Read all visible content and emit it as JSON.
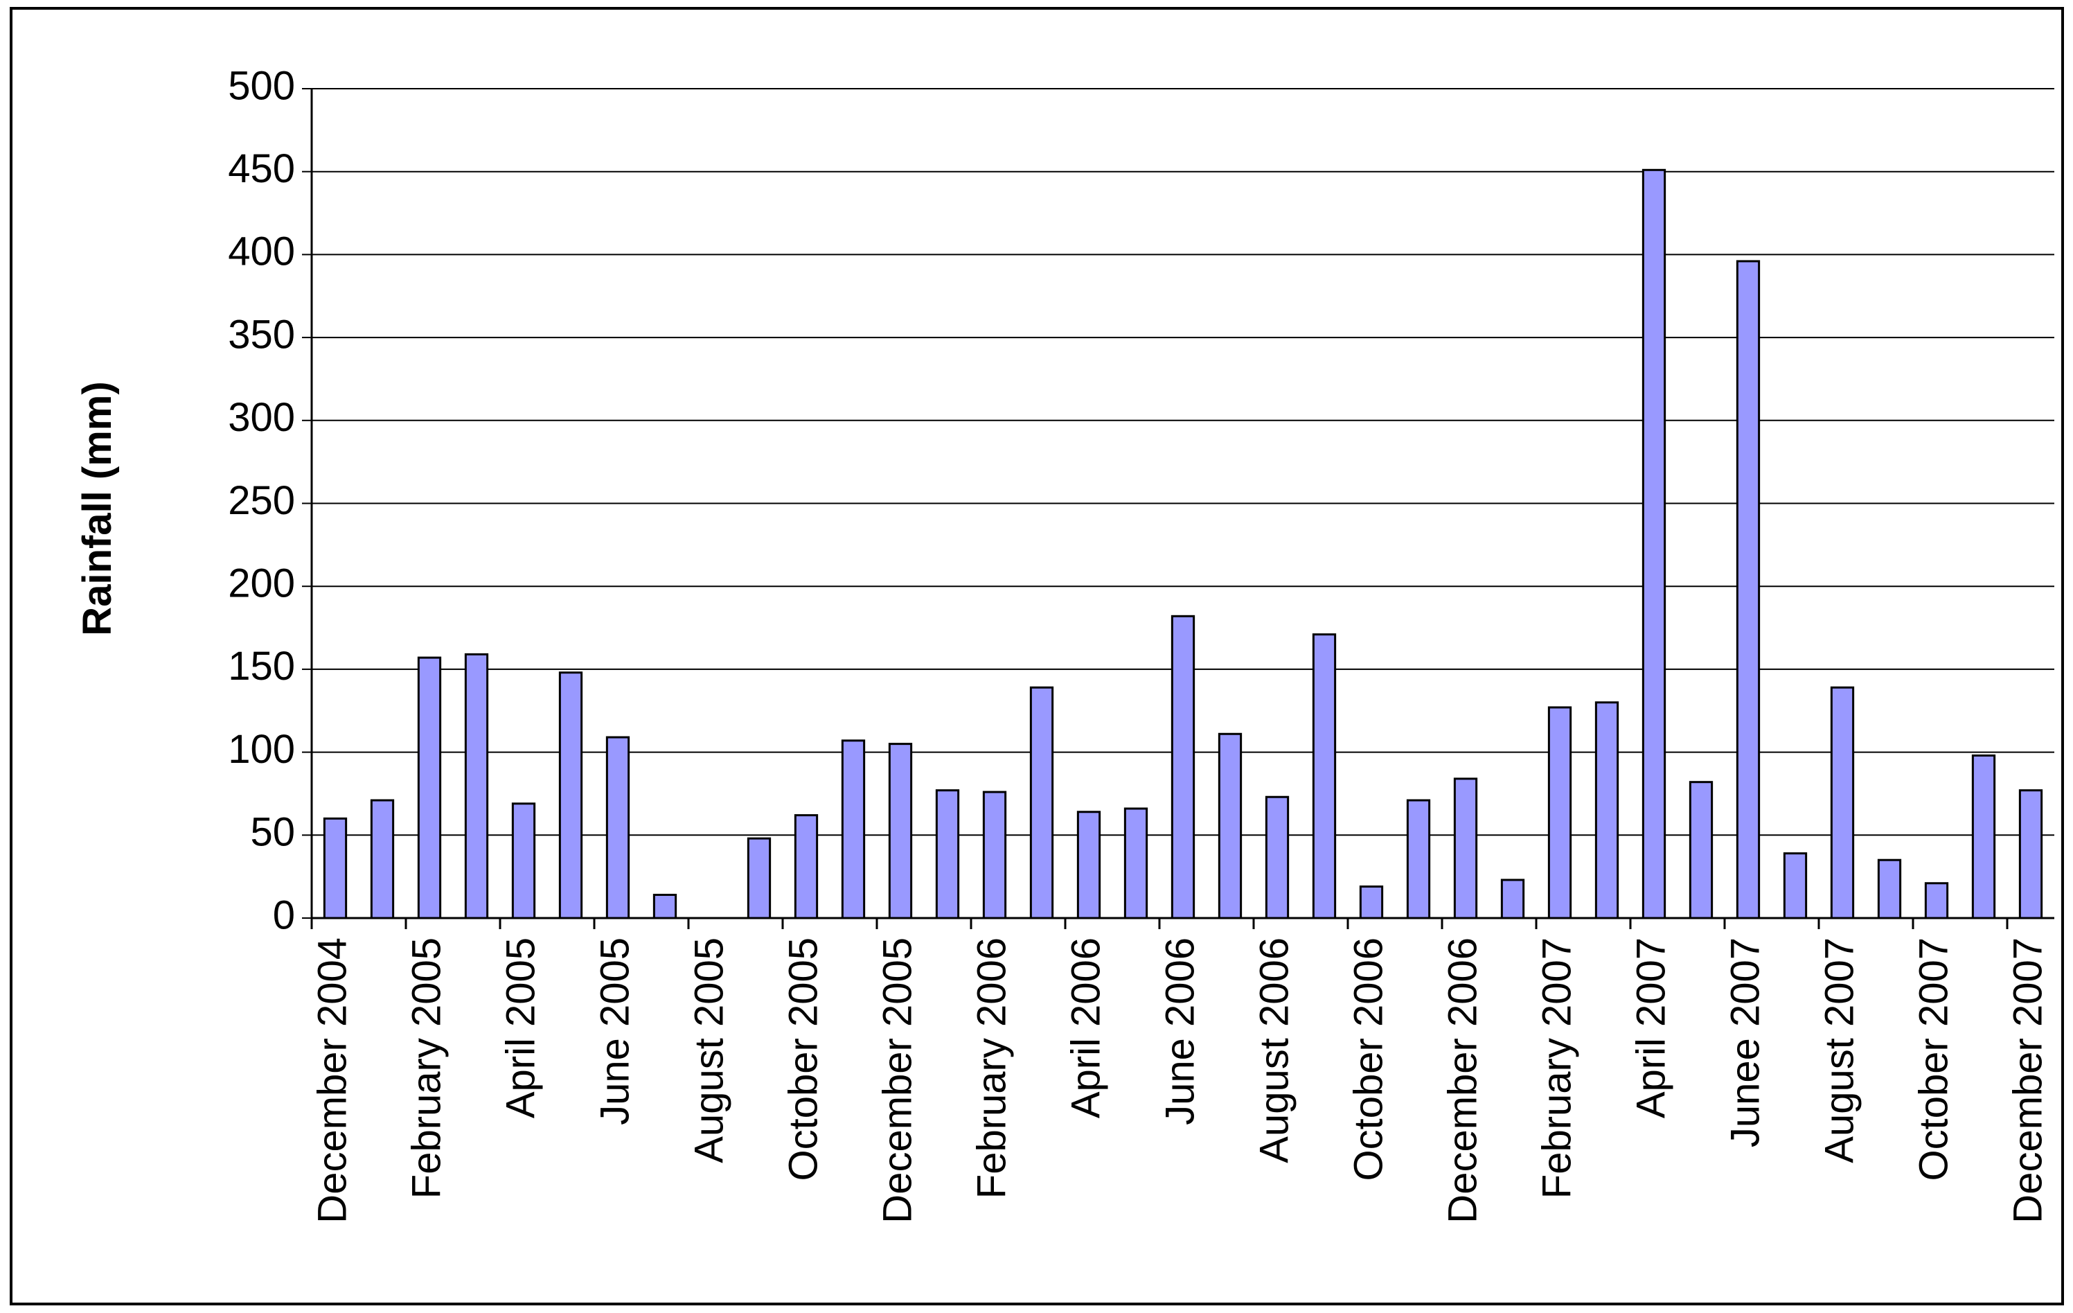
{
  "chart_data": {
    "type": "bar",
    "y_label": "Rainfall (mm)",
    "categories": [
      "December 2004",
      null,
      "February 2005",
      null,
      "April 2005",
      null,
      "June 2005",
      null,
      "August 2005",
      null,
      "October 2005",
      null,
      "December 2005",
      null,
      "February 2006",
      null,
      "April 2006",
      null,
      "June 2006",
      null,
      "August 2006",
      null,
      "October 2006",
      null,
      "December 2006",
      null,
      "February 2007",
      null,
      "April 2007",
      null,
      "Junee 2007",
      null,
      "August 2007",
      null,
      "October 2007",
      null,
      "December 2007"
    ],
    "values": [
      60,
      71,
      157,
      159,
      69,
      148,
      109,
      14,
      0,
      48,
      62,
      107,
      105,
      77,
      76,
      139,
      64,
      66,
      182,
      111,
      73,
      171,
      19,
      71,
      84,
      23,
      127,
      130,
      451,
      82,
      396,
      39,
      139,
      35,
      21,
      98,
      77
    ],
    "color": "#9999ff",
    "ylim": [
      0,
      500
    ],
    "yticks": [
      0,
      50,
      100,
      150,
      200,
      250,
      300,
      350,
      400,
      450,
      500
    ],
    "grid": true
  }
}
